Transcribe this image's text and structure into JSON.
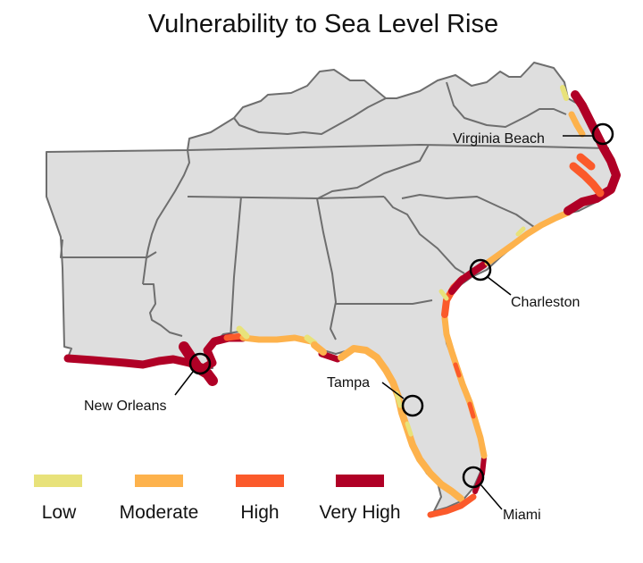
{
  "title": "Vulnerability to Sea Level Rise",
  "legend": [
    {
      "label": "Low",
      "color": "#e8e27a"
    },
    {
      "label": "Moderate",
      "color": "#fdb24c"
    },
    {
      "label": "High",
      "color": "#fb5a2b"
    },
    {
      "label": "Very High",
      "color": "#b00026"
    }
  ],
  "cities": [
    {
      "name": "Virginia Beach"
    },
    {
      "name": "Charleston"
    },
    {
      "name": "New Orleans"
    },
    {
      "name": "Tampa"
    },
    {
      "name": "Miami"
    }
  ],
  "land_color": "#dedede",
  "border_color": "#6e6e6e"
}
